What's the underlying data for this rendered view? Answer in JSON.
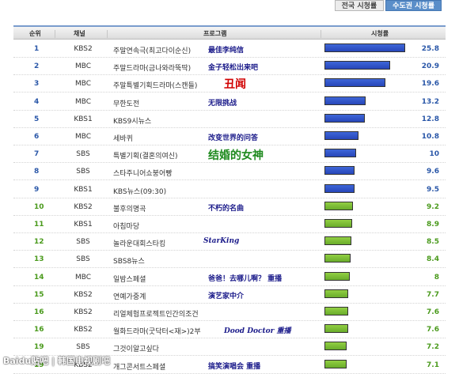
{
  "tabs": [
    {
      "label": "전국 시청률",
      "active": false
    },
    {
      "label": "수도권 시청률",
      "active": true
    }
  ],
  "header": {
    "rank": "순위",
    "channel": "채널",
    "program": "프로그램",
    "rating": "시청률"
  },
  "rows": [
    {
      "rank": "1",
      "channel": "KBS2",
      "program": "주말연속극(최고다이순신)",
      "note": "最佳李纯信",
      "rating": "25.8",
      "value": 25.8,
      "color": "blue"
    },
    {
      "rank": "2",
      "channel": "MBC",
      "program": "주말드라마(금나와라뚝딱)",
      "note": "金子轻松出来吧",
      "rating": "20.9",
      "value": 20.9,
      "color": "blue"
    },
    {
      "rank": "3",
      "channel": "MBC",
      "program": "주말특별기획드라마(스캔들)",
      "note": "丑闻",
      "rating": "19.6",
      "value": 19.6,
      "color": "blue"
    },
    {
      "rank": "4",
      "channel": "MBC",
      "program": "무한도전",
      "note": "无限挑战",
      "rating": "13.2",
      "value": 13.2,
      "color": "blue"
    },
    {
      "rank": "5",
      "channel": "KBS1",
      "program": "KBS9시뉴스",
      "note": "",
      "rating": "12.8",
      "value": 12.8,
      "color": "blue"
    },
    {
      "rank": "6",
      "channel": "MBC",
      "program": "세바퀴",
      "note": "改变世界的问答",
      "rating": "10.8",
      "value": 10.8,
      "color": "blue"
    },
    {
      "rank": "7",
      "channel": "SBS",
      "program": "특별기획(결혼의여신)",
      "note": "结婚的女神",
      "rating": "10",
      "value": 10,
      "color": "blue"
    },
    {
      "rank": "8",
      "channel": "SBS",
      "program": "스타주니어쇼붕어빵",
      "note": "",
      "rating": "9.6",
      "value": 9.6,
      "color": "blue"
    },
    {
      "rank": "9",
      "channel": "KBS1",
      "program": "KBS뉴스(09:30)",
      "note": "",
      "rating": "9.5",
      "value": 9.5,
      "color": "blue"
    },
    {
      "rank": "10",
      "channel": "KBS2",
      "program": "불후의명곡",
      "note": "不朽的名曲",
      "rating": "9.2",
      "value": 9.2,
      "color": "green"
    },
    {
      "rank": "11",
      "channel": "KBS1",
      "program": "아침마당",
      "note": "",
      "rating": "8.9",
      "value": 8.9,
      "color": "green"
    },
    {
      "rank": "12",
      "channel": "SBS",
      "program": "놀라운대회스타킹",
      "note": "StarKing",
      "rating": "8.5",
      "value": 8.5,
      "color": "green"
    },
    {
      "rank": "13",
      "channel": "SBS",
      "program": "SBS8뉴스",
      "note": "",
      "rating": "8.4",
      "value": 8.4,
      "color": "green"
    },
    {
      "rank": "14",
      "channel": "MBC",
      "program": "일밤스페셜",
      "note": "爸爸！去哪儿啊？ 重播",
      "rating": "8",
      "value": 8,
      "color": "green"
    },
    {
      "rank": "15",
      "channel": "KBS2",
      "program": "연예가중계",
      "note": "演艺家中介",
      "rating": "7.7",
      "value": 7.7,
      "color": "green"
    },
    {
      "rank": "16",
      "channel": "KBS2",
      "program": "리얼체험프로젝트인간의조건",
      "note": "",
      "rating": "7.6",
      "value": 7.6,
      "color": "green"
    },
    {
      "rank": "16",
      "channel": "KBS2",
      "program": "월화드라마(굿닥터<재>)2부",
      "note": "Dood Doctor 重播",
      "rating": "7.6",
      "value": 7.6,
      "color": "green"
    },
    {
      "rank": "19",
      "channel": "SBS",
      "program": "그것이알고싶다",
      "note": "",
      "rating": "7.2",
      "value": 7.2,
      "color": "green"
    },
    {
      "rank": "19",
      "channel": "KBS2",
      "program": "개그콘서트스페셜",
      "note": "搞笑演唱会 重播",
      "rating": "7.1",
      "value": 7.1,
      "color": "green"
    }
  ],
  "watermark": "Baidu贴吧 | 韩国电视剧吧",
  "colors": {
    "blue_bar": "#2f50c6",
    "green_bar": "#7cbf35",
    "rank_blue": "#2a57a8",
    "rank_green": "#4a9a1c",
    "note": "#1b1b8a",
    "note_red": "#d10000",
    "note_green": "#1f8a1f"
  }
}
